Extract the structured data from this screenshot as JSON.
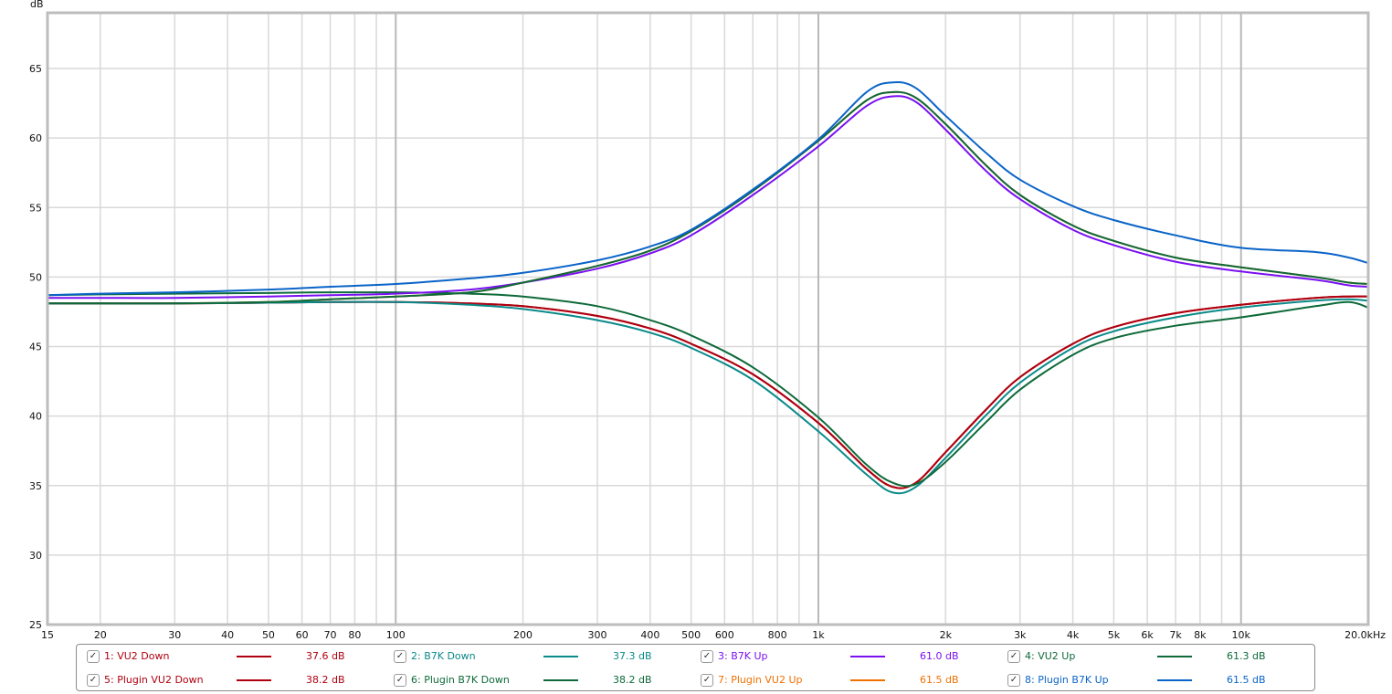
{
  "chart_data": {
    "type": "line",
    "title": "",
    "xlabel": "Hz",
    "ylabel": "dB",
    "xscale": "log",
    "xlim": [
      15,
      20000
    ],
    "ylim": [
      25,
      69
    ],
    "grid": true,
    "legend_position": "bottom",
    "y_ticks": [
      25,
      30,
      35,
      40,
      45,
      50,
      55,
      60,
      65
    ],
    "y_unit_label": "dB",
    "x_tick_labels": [
      {
        "f": 15,
        "label": "15"
      },
      {
        "f": 20,
        "label": "20"
      },
      {
        "f": 30,
        "label": "30"
      },
      {
        "f": 40,
        "label": "40"
      },
      {
        "f": 50,
        "label": "50"
      },
      {
        "f": 60,
        "label": "60"
      },
      {
        "f": 70,
        "label": "70"
      },
      {
        "f": 80,
        "label": "80"
      },
      {
        "f": 100,
        "label": "100"
      },
      {
        "f": 200,
        "label": "200"
      },
      {
        "f": 300,
        "label": "300"
      },
      {
        "f": 400,
        "label": "400"
      },
      {
        "f": 500,
        "label": "500"
      },
      {
        "f": 600,
        "label": "600"
      },
      {
        "f": 800,
        "label": "800"
      },
      {
        "f": 1000,
        "label": "1k"
      },
      {
        "f": 2000,
        "label": "2k"
      },
      {
        "f": 3000,
        "label": "3k"
      },
      {
        "f": 4000,
        "label": "4k"
      },
      {
        "f": 5000,
        "label": "5k"
      },
      {
        "f": 6000,
        "label": "6k"
      },
      {
        "f": 7000,
        "label": "7k"
      },
      {
        "f": 8000,
        "label": "8k"
      },
      {
        "f": 10000,
        "label": "10k"
      },
      {
        "f": 20000,
        "label": "20.0kHz"
      }
    ],
    "x_minor_grid": [
      15,
      20,
      30,
      40,
      50,
      60,
      70,
      80,
      90,
      100,
      200,
      300,
      400,
      500,
      600,
      700,
      800,
      900,
      1000,
      2000,
      3000,
      4000,
      5000,
      6000,
      7000,
      8000,
      9000,
      10000,
      20000
    ],
    "x_major_grid": [
      100,
      1000,
      10000
    ],
    "x": [
      15,
      20,
      30,
      50,
      70,
      100,
      150,
      200,
      300,
      400,
      500,
      700,
      1000,
      1300,
      1500,
      1700,
      2000,
      2500,
      3000,
      4000,
      5000,
      7000,
      10000,
      15000,
      18000,
      20000
    ],
    "series": [
      {
        "name": "1: VU2 Down",
        "color": "#b0000f",
        "value_label": "37.6 dB",
        "values": [
          48.1,
          48.1,
          48.1,
          48.15,
          48.2,
          48.2,
          48.1,
          47.9,
          47.2,
          46.3,
          45.2,
          43.0,
          39.5,
          36.2,
          34.9,
          35.2,
          37.4,
          40.5,
          42.8,
          45.2,
          46.4,
          47.4,
          48.0,
          48.5,
          48.6,
          48.6
        ]
      },
      {
        "name": "2: B7K Down",
        "color": "#0a8a8a",
        "value_label": "37.3 dB",
        "values": [
          48.1,
          48.1,
          48.1,
          48.15,
          48.2,
          48.2,
          48.0,
          47.7,
          46.9,
          46.0,
          44.9,
          42.6,
          38.9,
          35.8,
          34.5,
          34.9,
          37.0,
          40.1,
          42.4,
          44.9,
          46.1,
          47.1,
          47.8,
          48.3,
          48.4,
          48.3
        ]
      },
      {
        "name": "3: B7K Up",
        "color": "#7a10f0",
        "value_label": "61.0 dB",
        "values": [
          48.5,
          48.5,
          48.5,
          48.6,
          48.7,
          48.8,
          49.1,
          49.6,
          50.6,
          51.7,
          53.0,
          55.9,
          59.4,
          62.3,
          63.0,
          62.6,
          60.6,
          57.6,
          55.6,
          53.4,
          52.3,
          51.1,
          50.4,
          49.8,
          49.4,
          49.3
        ]
      },
      {
        "name": "4: VU2 Up",
        "color": "#0e6a3a",
        "value_label": "61.3 dB",
        "values": [
          48.1,
          48.1,
          48.1,
          48.2,
          48.4,
          48.6,
          48.9,
          49.6,
          50.8,
          51.9,
          53.3,
          56.2,
          59.8,
          62.7,
          63.3,
          62.9,
          61.0,
          58.0,
          55.9,
          53.7,
          52.6,
          51.4,
          50.7,
          50.0,
          49.6,
          49.5
        ]
      },
      {
        "name": "5: Plugin VU2 Down",
        "color": "#b0000f",
        "value_label": "38.2 dB",
        "values": [
          48.1,
          48.1,
          48.1,
          48.15,
          48.2,
          48.2,
          48.1,
          47.9,
          47.2,
          46.3,
          45.2,
          43.0,
          39.5,
          36.2,
          34.9,
          35.2,
          37.4,
          40.5,
          42.8,
          45.2,
          46.4,
          47.4,
          48.0,
          48.5,
          48.6,
          48.6
        ]
      },
      {
        "name": "6: Plugin B7K Down",
        "color": "#0e6a3a",
        "value_label": "38.2 dB",
        "values": [
          48.7,
          48.75,
          48.8,
          48.85,
          48.9,
          48.9,
          48.8,
          48.6,
          47.9,
          46.9,
          45.8,
          43.5,
          39.9,
          36.5,
          35.2,
          35.1,
          36.7,
          39.6,
          41.9,
          44.4,
          45.6,
          46.5,
          47.1,
          47.9,
          48.2,
          47.8
        ]
      },
      {
        "name": "7: Plugin VU2 Up",
        "color": "#f07000",
        "value_label": "61.5 dB",
        "values": [
          48.1,
          48.1,
          48.1,
          48.2,
          48.4,
          48.6,
          48.9,
          49.6,
          50.8,
          51.9,
          53.3,
          56.2,
          59.8,
          62.7,
          63.3,
          62.9,
          61.0,
          58.0,
          55.9,
          53.7,
          52.6,
          51.4,
          50.7,
          50.0,
          49.6,
          49.5
        ]
      },
      {
        "name": "8: Plugin B7K Up",
        "color": "#0a64c8",
        "value_label": "61.5 dB",
        "values": [
          48.7,
          48.8,
          48.9,
          49.1,
          49.3,
          49.5,
          49.9,
          50.3,
          51.2,
          52.2,
          53.4,
          56.3,
          59.9,
          63.3,
          64.0,
          63.6,
          61.6,
          58.9,
          57.0,
          55.1,
          54.1,
          53.0,
          52.1,
          51.8,
          51.4,
          51.0
        ]
      }
    ]
  },
  "legend": {
    "items": [
      {
        "label": "1: VU2 Down",
        "value": "37.6 dB",
        "color": "#b0000f",
        "checked": "✓"
      },
      {
        "label": "2: B7K Down",
        "value": "37.3 dB",
        "color": "#0a8a8a",
        "checked": "✓"
      },
      {
        "label": "3: B7K Up",
        "value": "61.0 dB",
        "color": "#7a10f0",
        "checked": "✓"
      },
      {
        "label": "4: VU2 Up",
        "value": "61.3 dB",
        "color": "#0e6a3a",
        "checked": "✓"
      },
      {
        "label": "5: Plugin VU2 Down",
        "value": "38.2 dB",
        "color": "#b0000f",
        "checked": "✓"
      },
      {
        "label": "6: Plugin B7K Down",
        "value": "38.2 dB",
        "color": "#0e6a3a",
        "checked": "✓"
      },
      {
        "label": "7: Plugin VU2 Up",
        "value": "61.5 dB",
        "color": "#f07000",
        "checked": "✓"
      },
      {
        "label": "8: Plugin B7K Up",
        "value": "61.5 dB",
        "color": "#0a64c8",
        "checked": "✓"
      }
    ]
  },
  "colors": {
    "grid": "#d9d9d9",
    "grid_major": "#b8b8b8",
    "frame": "#bdbdbd"
  }
}
